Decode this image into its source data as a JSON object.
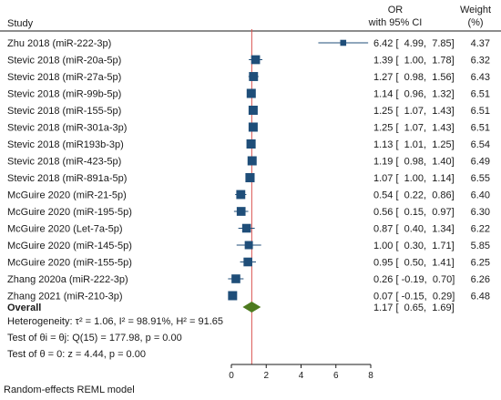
{
  "chart_data": {
    "type": "forest",
    "headers": {
      "study": "Study",
      "or_line1": "OR",
      "or_line2": "with 95% CI",
      "weight_line1": "Weight",
      "weight_line2": "(%)"
    },
    "studies": [
      {
        "label": "Zhu 2018 (miR-222-3p)",
        "or": 6.42,
        "lo": 4.99,
        "hi": 7.85,
        "ci_text": "6.42 [  4.99,  7.85]",
        "weight": 4.37,
        "weight_text": "4.37"
      },
      {
        "label": "Stevic 2018 (miR-20a-5p)",
        "or": 1.39,
        "lo": 1.0,
        "hi": 1.78,
        "ci_text": "1.39 [  1.00,  1.78]",
        "weight": 6.32,
        "weight_text": "6.32"
      },
      {
        "label": "Stevic 2018 (miR-27a-5p)",
        "or": 1.27,
        "lo": 0.98,
        "hi": 1.56,
        "ci_text": "1.27 [  0.98,  1.56]",
        "weight": 6.43,
        "weight_text": "6.43"
      },
      {
        "label": "Stevic 2018 (miR-99b-5p)",
        "or": 1.14,
        "lo": 0.96,
        "hi": 1.32,
        "ci_text": "1.14 [  0.96,  1.32]",
        "weight": 6.51,
        "weight_text": "6.51"
      },
      {
        "label": "Stevic 2018 (miR-155-5p)",
        "or": 1.25,
        "lo": 1.07,
        "hi": 1.43,
        "ci_text": "1.25 [  1.07,  1.43]",
        "weight": 6.51,
        "weight_text": "6.51"
      },
      {
        "label": "Stevic 2018 (miR-301a-3p)",
        "or": 1.25,
        "lo": 1.07,
        "hi": 1.43,
        "ci_text": "1.25 [  1.07,  1.43]",
        "weight": 6.51,
        "weight_text": "6.51"
      },
      {
        "label": "Stevic 2018 (miR193b-3p)",
        "or": 1.13,
        "lo": 1.01,
        "hi": 1.25,
        "ci_text": "1.13 [  1.01,  1.25]",
        "weight": 6.54,
        "weight_text": "6.54"
      },
      {
        "label": "Stevic 2018 (miR-423-5p)",
        "or": 1.19,
        "lo": 0.98,
        "hi": 1.4,
        "ci_text": "1.19 [  0.98,  1.40]",
        "weight": 6.49,
        "weight_text": "6.49"
      },
      {
        "label": "Stevic 2018 (miR-891a-5p)",
        "or": 1.07,
        "lo": 1.0,
        "hi": 1.14,
        "ci_text": "1.07 [  1.00,  1.14]",
        "weight": 6.55,
        "weight_text": "6.55"
      },
      {
        "label": "McGuire 2020 (miR-21-5p)",
        "or": 0.54,
        "lo": 0.22,
        "hi": 0.86,
        "ci_text": "0.54 [  0.22,  0.86]",
        "weight": 6.4,
        "weight_text": "6.40"
      },
      {
        "label": "McGuire 2020 (miR-195-5p)",
        "or": 0.56,
        "lo": 0.15,
        "hi": 0.97,
        "ci_text": "0.56 [  0.15,  0.97]",
        "weight": 6.3,
        "weight_text": "6.30"
      },
      {
        "label": "McGuire 2020 (Let-7a-5p)",
        "or": 0.87,
        "lo": 0.4,
        "hi": 1.34,
        "ci_text": "0.87 [  0.40,  1.34]",
        "weight": 6.22,
        "weight_text": "6.22"
      },
      {
        "label": "McGuire 2020 (miR-145-5p)",
        "or": 1.0,
        "lo": 0.3,
        "hi": 1.71,
        "ci_text": "1.00 [  0.30,  1.71]",
        "weight": 5.85,
        "weight_text": "5.85"
      },
      {
        "label": "McGuire 2020 (miR-155-5p)",
        "or": 0.95,
        "lo": 0.5,
        "hi": 1.41,
        "ci_text": "0.95 [  0.50,  1.41]",
        "weight": 6.25,
        "weight_text": "6.25"
      },
      {
        "label": "Zhang 2020a (miR-222-3p)",
        "or": 0.26,
        "lo": -0.19,
        "hi": 0.7,
        "ci_text": "0.26 [ -0.19,  0.70]",
        "weight": 6.26,
        "weight_text": "6.26"
      },
      {
        "label": "Zhang 2021 (miR-210-3p)",
        "or": 0.07,
        "lo": -0.15,
        "hi": 0.29,
        "ci_text": "0.07 [ -0.15,  0.29]",
        "weight": 6.48,
        "weight_text": "6.48"
      }
    ],
    "overall": {
      "label": "Overall",
      "or": 1.17,
      "lo": 0.65,
      "hi": 1.69,
      "ci_text": "1.17 [  0.65,  1.69]"
    },
    "stats": {
      "heterogeneity": "Heterogeneity: τ² = 1.06, I² = 98.91%, H² = 91.65",
      "theta_equal": "Test of θi = θj: Q(15) = 177.98, p = 0.00",
      "theta_zero": "Test of θ = 0: z = 4.44, p = 0.00"
    },
    "model_note": "Random-effects REML model",
    "x_ticks": [
      0,
      2,
      4,
      6,
      8
    ],
    "xlim": [
      0,
      8
    ],
    "reference_line": 1.17,
    "colors": {
      "marker": "#1f4e79",
      "ci_line": "#1f4e79",
      "diamond": "#4d7a1f",
      "reference_line": "#d9534f",
      "text": "#1a1a1a"
    }
  }
}
